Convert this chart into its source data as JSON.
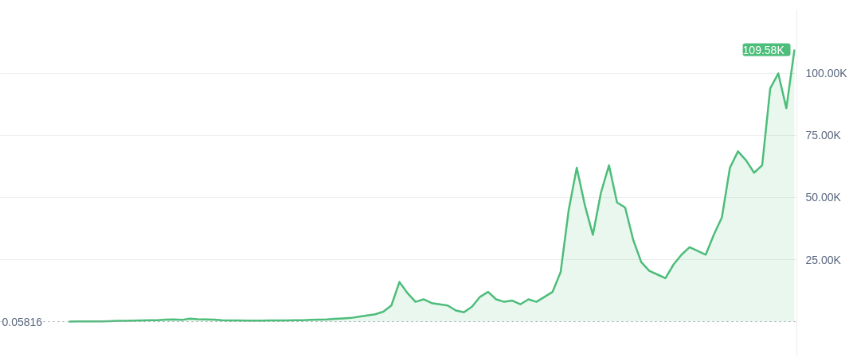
{
  "chart_data": {
    "type": "area",
    "categories": [
      null,
      null,
      null,
      null,
      null,
      null,
      null,
      null,
      null,
      null,
      null,
      null,
      null,
      null,
      null,
      null,
      null,
      null,
      null,
      null,
      null,
      null,
      null,
      null,
      null,
      null,
      null,
      null,
      null,
      null,
      null,
      null,
      null,
      null,
      null,
      null,
      null,
      null,
      null,
      null,
      null,
      null,
      null,
      null,
      null,
      null,
      null,
      null,
      null,
      null,
      null,
      null,
      null,
      null,
      null,
      null,
      null,
      null,
      null,
      null,
      null,
      null,
      null,
      null,
      null,
      null,
      null,
      null,
      null,
      null,
      null,
      null,
      null,
      null,
      null,
      null,
      null,
      null,
      null,
      null,
      null,
      null,
      null,
      null,
      null,
      null,
      null,
      null,
      null,
      null,
      null
    ],
    "series": [
      {
        "color": "#4dbd7a",
        "values": [
          0,
          60,
          100,
          100,
          100,
          200,
          300,
          300,
          400,
          500,
          600,
          600,
          800,
          900,
          700,
          1200,
          1000,
          900,
          800,
          600,
          500,
          500,
          400,
          400,
          400,
          500,
          500,
          500,
          600,
          600,
          700,
          800,
          900,
          1100,
          1300,
          1500,
          2000,
          2500,
          3000,
          4000,
          6500,
          16000,
          11500,
          8000,
          9000,
          7500,
          7000,
          6500,
          4500,
          3800,
          6000,
          10000,
          12000,
          9000,
          8000,
          8500,
          7000,
          9000,
          8000,
          10000,
          12000,
          20000,
          45000,
          62000,
          47000,
          35000,
          52000,
          63000,
          48000,
          46000,
          33000,
          24000,
          20500,
          19000,
          17500,
          23000,
          27000,
          30000,
          28500,
          27000,
          35000,
          42000,
          62000,
          68600,
          65000,
          60000,
          63000,
          94000,
          100000,
          86000,
          109580
        ]
      }
    ],
    "ylim": [
      -14400,
      125600
    ],
    "yticks": [
      {
        "value": 25000,
        "label": "25.00K"
      },
      {
        "value": 50000,
        "label": "50.00K"
      },
      {
        "value": 75000,
        "label": "75.00K"
      },
      {
        "value": 100000,
        "label": "100.00K"
      }
    ],
    "grid": "y",
    "ref_lines": [
      {
        "axis": "y",
        "value": 0.05816,
        "label": "0.05816",
        "color": "#9aa0a6",
        "line_style": "dotted"
      }
    ],
    "annotations": [
      "109.58K"
    ]
  }
}
